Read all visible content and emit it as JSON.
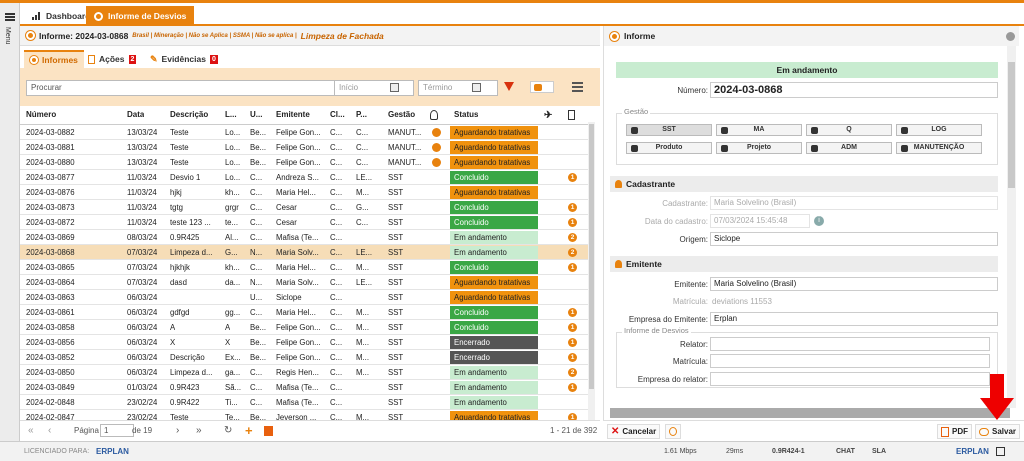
{
  "colors": {
    "accent": "#e8820e",
    "aguardando": "#f0920e",
    "concluido": "#3aa745",
    "em_andamento": "#c8ecd0",
    "encerrado": "#555555"
  },
  "menu": {
    "label": "Menu"
  },
  "tabs": [
    {
      "label": "Dashboard",
      "icon": "bar-chart-icon"
    },
    {
      "label": "Informe de Desvios",
      "icon": "flame-icon"
    }
  ],
  "header": {
    "title": "Informe: 2024-03-0868",
    "meta": "Brasil | Mineração | Não se Aplica | SSMA | Não se aplica |",
    "subject": "Limpeza de Fachada"
  },
  "subtabs": [
    {
      "label": "Informes"
    },
    {
      "label": "Ações",
      "badge": "2"
    },
    {
      "label": "Evidências",
      "badge": "0"
    }
  ],
  "filters": {
    "search_placeholder": "Procurar",
    "inicio_placeholder": "Início",
    "termino_placeholder": "Término"
  },
  "columns": [
    "Número",
    "Data",
    "Descrição",
    "L...",
    "U...",
    "Emitente",
    "Cl...",
    "P...",
    "Gestão",
    "",
    "Status",
    "",
    ""
  ],
  "rows": [
    {
      "num": "2024-03-0882",
      "data": "13/03/24",
      "desc": "Teste",
      "l": "Lo...",
      "u": "Be...",
      "emit": "Felipe Gon...",
      "cl": "C...",
      "p": "C...",
      "gestao": "MANUT...",
      "warn": true,
      "status": "Aguardando tratativas",
      "st": "ag",
      "count": ""
    },
    {
      "num": "2024-03-0881",
      "data": "13/03/24",
      "desc": "Teste",
      "l": "Lo...",
      "u": "Be...",
      "emit": "Felipe Gon...",
      "cl": "C...",
      "p": "C...",
      "gestao": "MANUT...",
      "warn": true,
      "status": "Aguardando tratativas",
      "st": "ag",
      "count": ""
    },
    {
      "num": "2024-03-0880",
      "data": "13/03/24",
      "desc": "Teste",
      "l": "Lo...",
      "u": "Be...",
      "emit": "Felipe Gon...",
      "cl": "C...",
      "p": "C...",
      "gestao": "MANUT...",
      "warn": true,
      "status": "Aguardando tratativas",
      "st": "ag",
      "count": ""
    },
    {
      "num": "2024-03-0877",
      "data": "11/03/24",
      "desc": "Desvio 1",
      "l": "Lo...",
      "u": "C...",
      "emit": "Andreza S...",
      "cl": "C...",
      "p": "LE...",
      "gestao": "SST",
      "warn": false,
      "status": "Concluido",
      "st": "co",
      "count": "1"
    },
    {
      "num": "2024-03-0876",
      "data": "11/03/24",
      "desc": "hjkj",
      "l": "kh...",
      "u": "C...",
      "emit": "Maria Hel...",
      "cl": "C...",
      "p": "M...",
      "gestao": "SST",
      "warn": false,
      "status": "Aguardando tratativas",
      "st": "ag",
      "count": ""
    },
    {
      "num": "2024-03-0873",
      "data": "11/03/24",
      "desc": "tgtg",
      "l": "grgr",
      "u": "C...",
      "emit": "Cesar",
      "cl": "C...",
      "p": "G...",
      "gestao": "SST",
      "warn": false,
      "status": "Concluido",
      "st": "co",
      "count": "1"
    },
    {
      "num": "2024-03-0872",
      "data": "11/03/24",
      "desc": "teste 123 ...",
      "l": "te...",
      "u": "C...",
      "emit": "Cesar",
      "cl": "C...",
      "p": "C...",
      "gestao": "SST",
      "warn": false,
      "status": "Concluido",
      "st": "co",
      "count": "1"
    },
    {
      "num": "2024-03-0869",
      "data": "08/03/24",
      "desc": "0.9R425",
      "l": "Al...",
      "u": "C...",
      "emit": "Mafisa (Te...",
      "cl": "C...",
      "p": "",
      "gestao": "SST",
      "warn": false,
      "status": "Em andamento",
      "st": "em",
      "count": "2"
    },
    {
      "num": "2024-03-0868",
      "data": "07/03/24",
      "desc": "Limpeza d...",
      "l": "G...",
      "u": "N...",
      "emit": "Maria Solv...",
      "cl": "C...",
      "p": "LE...",
      "gestao": "SST",
      "warn": false,
      "status": "Em andamento",
      "st": "em",
      "count": "2",
      "sel": true
    },
    {
      "num": "2024-03-0865",
      "data": "07/03/24",
      "desc": "hjkhjk",
      "l": "kh...",
      "u": "C...",
      "emit": "Maria Hel...",
      "cl": "C...",
      "p": "M...",
      "gestao": "SST",
      "warn": false,
      "status": "Concluido",
      "st": "co",
      "count": "1"
    },
    {
      "num": "2024-03-0864",
      "data": "07/03/24",
      "desc": "dasd",
      "l": "da...",
      "u": "N...",
      "emit": "Maria Solv...",
      "cl": "C...",
      "p": "LE...",
      "gestao": "SST",
      "warn": false,
      "status": "Aguardando tratativas",
      "st": "ag",
      "count": ""
    },
    {
      "num": "2024-03-0863",
      "data": "06/03/24",
      "desc": "",
      "l": "",
      "u": "U...",
      "emit": "Siclope",
      "cl": "C...",
      "p": "",
      "gestao": "SST",
      "warn": false,
      "status": "Aguardando tratativas",
      "st": "ag",
      "count": ""
    },
    {
      "num": "2024-03-0861",
      "data": "06/03/24",
      "desc": "gdfgd",
      "l": "gg...",
      "u": "C...",
      "emit": "Maria Hel...",
      "cl": "C...",
      "p": "M...",
      "gestao": "SST",
      "warn": false,
      "status": "Concluido",
      "st": "co",
      "count": "1"
    },
    {
      "num": "2024-03-0858",
      "data": "06/03/24",
      "desc": "A",
      "l": "A",
      "u": "Be...",
      "emit": "Felipe Gon...",
      "cl": "C...",
      "p": "M...",
      "gestao": "SST",
      "warn": false,
      "status": "Concluido",
      "st": "co",
      "count": "1"
    },
    {
      "num": "2024-03-0856",
      "data": "06/03/24",
      "desc": "X",
      "l": "X",
      "u": "Be...",
      "emit": "Felipe Gon...",
      "cl": "C...",
      "p": "M...",
      "gestao": "SST",
      "warn": false,
      "status": "Encerrado",
      "st": "en",
      "count": "1"
    },
    {
      "num": "2024-03-0852",
      "data": "06/03/24",
      "desc": "Descrição",
      "l": "Ex...",
      "u": "Be...",
      "emit": "Felipe Gon...",
      "cl": "C...",
      "p": "M...",
      "gestao": "SST",
      "warn": false,
      "status": "Encerrado",
      "st": "en",
      "count": "1"
    },
    {
      "num": "2024-03-0850",
      "data": "06/03/24",
      "desc": "Limpeza d...",
      "l": "ga...",
      "u": "C...",
      "emit": "Regis Hen...",
      "cl": "C...",
      "p": "M...",
      "gestao": "SST",
      "warn": false,
      "status": "Em andamento",
      "st": "em",
      "count": "2"
    },
    {
      "num": "2024-03-0849",
      "data": "01/03/24",
      "desc": "0.9R423",
      "l": "Sã...",
      "u": "C...",
      "emit": "Mafisa (Te...",
      "cl": "C...",
      "p": "",
      "gestao": "SST",
      "warn": false,
      "status": "Em andamento",
      "st": "em",
      "count": "1"
    },
    {
      "num": "2024-02-0848",
      "data": "23/02/24",
      "desc": "0.9R422",
      "l": "Ti...",
      "u": "C...",
      "emit": "Mafisa (Te...",
      "cl": "C...",
      "p": "",
      "gestao": "SST",
      "warn": false,
      "status": "Em andamento",
      "st": "em",
      "count": ""
    },
    {
      "num": "2024-02-0847",
      "data": "23/02/24",
      "desc": "Teste",
      "l": "Te...",
      "u": "Be...",
      "emit": "Jeverson ...",
      "cl": "C...",
      "p": "M...",
      "gestao": "SST",
      "warn": false,
      "status": "Aguardando tratativas",
      "st": "ag",
      "count": "1"
    }
  ],
  "pager": {
    "page_label": "Página",
    "page": "1",
    "of": "de 19",
    "range": "1 - 21 de 392"
  },
  "panel": {
    "title": "Informe",
    "status": "Em andamento",
    "numero_label": "Número:",
    "numero": "2024-03-0868",
    "gestao_legend": "Gestão",
    "gestao_buttons": [
      {
        "label": "SST",
        "icon": "shield-icon",
        "active": true
      },
      {
        "label": "MA",
        "icon": "recycle-icon"
      },
      {
        "label": "Q",
        "icon": "medal-icon"
      },
      {
        "label": "LOG",
        "icon": "building-icon"
      },
      {
        "label": "Produto",
        "icon": "boxes-icon"
      },
      {
        "label": "Projeto",
        "icon": "people-icon"
      },
      {
        "label": "ADM",
        "icon": "person-icon"
      },
      {
        "label": "MANUTENÇÃO",
        "icon": "tools-icon"
      }
    ],
    "cadastrante_section": "Cadastrante",
    "cadastrante_label": "Cadastrante:",
    "cadastrante": "Maria Solvelino (Brasil)",
    "data_label": "Data do cadastro:",
    "data": "07/03/2024 15:45:48",
    "origem_label": "Origem:",
    "origem": "Siclope",
    "emitente_section": "Emitente",
    "emitente_label": "Emitente:",
    "emitente": "Maria Solvelino (Brasil)",
    "matricula_label": "Matrícula:",
    "matricula": "deviations 11553",
    "empresa_label": "Empresa do Emitente:",
    "empresa": "Erplan",
    "informe_legend": "Informe de Desvios",
    "relator_label": "Relator:",
    "matricula2_label": "Matrícula:",
    "empresa_relator_label": "Empresa do relator:"
  },
  "actions": {
    "cancelar": "Cancelar",
    "pdf": "PDF",
    "salvar": "Salvar"
  },
  "footer": {
    "licensed": "LICENCIADO PARA:",
    "brand": "ERPLAN",
    "speed": "1.61 Mbps",
    "latency": "29ms",
    "version": "0.9R424-1",
    "chat": "CHAT",
    "sla": "SLA"
  }
}
